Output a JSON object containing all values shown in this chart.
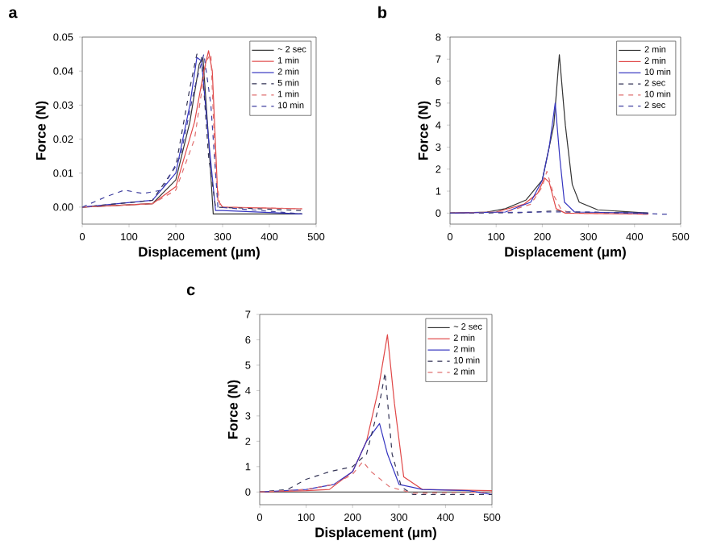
{
  "chart_data": [
    {
      "type": "line",
      "title": "a",
      "xlabel": "Displacement (μm)",
      "ylabel": "Force (N)",
      "xlim": [
        0,
        500
      ],
      "xticks": [
        0,
        100,
        200,
        300,
        400,
        500
      ],
      "ylim": [
        -0.005,
        0.05
      ],
      "yticks": [
        {
          "value": 0,
          "label": "0.00"
        },
        {
          "value": 0.01,
          "label": "0.01"
        },
        {
          "value": 0.02,
          "label": "0.02"
        },
        {
          "value": 0.03,
          "label": "0.03"
        },
        {
          "value": 0.04,
          "label": "0.04"
        },
        {
          "value": 0.05,
          "label": "0.05"
        }
      ],
      "legend": "top right",
      "series": [
        {
          "name": "~ 2 sec",
          "color": "#333333",
          "line_style": "solid",
          "x": [
            0,
            150,
            200,
            230,
            250,
            258,
            270,
            280,
            300,
            470
          ],
          "values": [
            0,
            0.001,
            0.008,
            0.025,
            0.042,
            0.044,
            0.02,
            -0.002,
            -0.002,
            -0.002
          ]
        },
        {
          "name": "1 min",
          "color": "#e04848",
          "line_style": "solid",
          "x": [
            0,
            150,
            200,
            240,
            260,
            270,
            278,
            290,
            300,
            470
          ],
          "values": [
            0,
            0.001,
            0.006,
            0.025,
            0.04,
            0.046,
            0.04,
            0.002,
            0,
            -0.0005
          ]
        },
        {
          "name": "2 min",
          "color": "#3535c0",
          "line_style": "solid",
          "x": [
            0,
            150,
            200,
            230,
            245,
            255,
            270,
            285,
            300,
            470
          ],
          "values": [
            0,
            0.002,
            0.01,
            0.03,
            0.044,
            0.043,
            0.02,
            -0.001,
            -0.001,
            -0.002
          ]
        },
        {
          "name": "5 min",
          "color": "#333355",
          "line_style": "dashed",
          "x": [
            0,
            150,
            200,
            230,
            245,
            255,
            270,
            285,
            470
          ],
          "values": [
            0,
            0.002,
            0.012,
            0.035,
            0.045,
            0.044,
            0.015,
            0,
            -0.001
          ]
        },
        {
          "name": "1 min",
          "color": "#e07070",
          "line_style": "dashed",
          "x": [
            0,
            150,
            200,
            240,
            265,
            275,
            285,
            295,
            470
          ],
          "values": [
            0,
            0.001,
            0.005,
            0.02,
            0.043,
            0.045,
            0.01,
            0,
            -0.0005
          ]
        },
        {
          "name": "10 min",
          "color": "#4040a0",
          "line_style": "dashed",
          "x": [
            0,
            50,
            90,
            130,
            170,
            210,
            240,
            260,
            275,
            290,
            470
          ],
          "values": [
            0,
            0.003,
            0.005,
            0.004,
            0.005,
            0.015,
            0.035,
            0.045,
            0.03,
            0,
            -0.002
          ]
        }
      ]
    },
    {
      "type": "line",
      "title": "b",
      "xlabel": "Displacement (μm)",
      "ylabel": "Force (N)",
      "xlim": [
        0,
        500
      ],
      "xticks": [
        0,
        100,
        200,
        300,
        400,
        500
      ],
      "ylim": [
        -0.5,
        8
      ],
      "yticks": [
        0,
        1,
        2,
        3,
        4,
        5,
        6,
        7,
        8
      ],
      "legend": "top right",
      "series": [
        {
          "name": "2 min",
          "color": "#333333",
          "line_style": "solid",
          "x": [
            0,
            80,
            120,
            165,
            200,
            225,
            237,
            250,
            265,
            280,
            320,
            430
          ],
          "values": [
            0,
            0.05,
            0.2,
            0.6,
            1.5,
            4,
            7.2,
            4,
            1.3,
            0.5,
            0.15,
            0
          ]
        },
        {
          "name": "2 min",
          "color": "#e04848",
          "line_style": "solid",
          "x": [
            0,
            100,
            160,
            190,
            205,
            215,
            230,
            250,
            430
          ],
          "values": [
            0,
            0.05,
            0.4,
            0.9,
            1.6,
            1.4,
            0.2,
            0,
            -0.05
          ]
        },
        {
          "name": "10 min",
          "color": "#3535c0",
          "line_style": "solid",
          "x": [
            0,
            120,
            175,
            200,
            215,
            228,
            238,
            248,
            270,
            430
          ],
          "values": [
            0,
            0.05,
            0.5,
            1.5,
            3,
            5,
            2.5,
            0.5,
            0.05,
            0
          ]
        },
        {
          "name": "2 sec",
          "color": "#333355",
          "line_style": "dashed",
          "x": [
            0,
            150,
            230,
            260,
            430
          ],
          "values": [
            0,
            0.02,
            0.1,
            0.05,
            0
          ]
        },
        {
          "name": "10 min",
          "color": "#e07070",
          "line_style": "dashed",
          "x": [
            0,
            120,
            175,
            200,
            210,
            225,
            240,
            260,
            430
          ],
          "values": [
            0,
            0.05,
            0.4,
            1.2,
            1.9,
            0.8,
            0.2,
            0,
            -0.05
          ]
        },
        {
          "name": "2 sec",
          "color": "#4040a0",
          "line_style": "dashed",
          "x": [
            0,
            200,
            300,
            470
          ],
          "values": [
            0,
            0.05,
            0.05,
            -0.05
          ]
        }
      ]
    },
    {
      "type": "line",
      "title": "c",
      "xlabel": "Displacement (μm)",
      "ylabel": "Force (N)",
      "xlim": [
        0,
        500
      ],
      "xticks": [
        0,
        100,
        200,
        300,
        400,
        500
      ],
      "ylim": [
        -0.5,
        7
      ],
      "yticks": [
        0,
        1,
        2,
        3,
        4,
        5,
        6,
        7
      ],
      "legend": "top right",
      "series": [
        {
          "name": "~ 2 sec",
          "color": "#333333",
          "line_style": "solid",
          "x": [
            0,
            500
          ],
          "values": [
            0,
            0
          ]
        },
        {
          "name": "2 min",
          "color": "#e04848",
          "line_style": "solid",
          "x": [
            0,
            100,
            150,
            200,
            230,
            255,
            275,
            290,
            310,
            350,
            500
          ],
          "values": [
            0,
            0.05,
            0.1,
            0.8,
            2,
            4,
            6.2,
            3.5,
            0.6,
            0.1,
            0.05
          ]
        },
        {
          "name": "2 min",
          "color": "#3535c0",
          "line_style": "solid",
          "x": [
            0,
            100,
            160,
            200,
            230,
            258,
            275,
            300,
            350,
            450,
            500
          ],
          "values": [
            0,
            0.1,
            0.3,
            0.8,
            2,
            2.7,
            1.5,
            0.3,
            0.1,
            0.05,
            -0.1
          ]
        },
        {
          "name": "10 min",
          "color": "#333355",
          "line_style": "dashed",
          "x": [
            0,
            60,
            100,
            150,
            200,
            230,
            258,
            270,
            285,
            305,
            330,
            500
          ],
          "values": [
            0,
            0.1,
            0.5,
            0.8,
            1,
            1.5,
            3.5,
            4.7,
            1.5,
            0.2,
            -0.1,
            -0.1
          ]
        },
        {
          "name": "2 min",
          "color": "#e07070",
          "line_style": "dashed",
          "x": [
            0,
            100,
            160,
            200,
            222,
            240,
            280,
            330,
            500
          ],
          "values": [
            0,
            0.1,
            0.3,
            0.7,
            1.2,
            0.8,
            0.2,
            -0.05,
            0
          ]
        }
      ]
    }
  ]
}
